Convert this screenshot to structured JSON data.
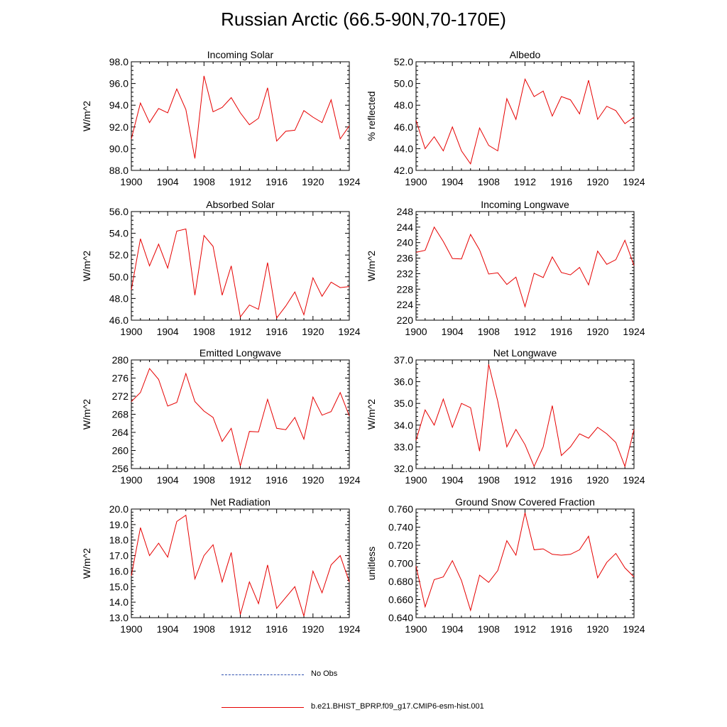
{
  "title": "Russian Arctic (66.5-90N,70-170E)",
  "colors": {
    "model": "#e60000",
    "obs": "#2f4fb0",
    "axis": "#000000"
  },
  "legend": {
    "obs_label": "No Obs",
    "model_label": "b.e21.BHIST_BPRP.f09_g17.CMIP6-esm-hist.001"
  },
  "chart_data": [
    {
      "type": "line",
      "title": "Incoming Solar",
      "ylabel": "W/m^2",
      "xlim": [
        1900,
        1924
      ],
      "ylim": [
        88,
        98
      ],
      "yticks": [
        "88.0",
        "90.0",
        "92.0",
        "94.0",
        "96.0",
        "98.0"
      ],
      "xticks": [
        "1900",
        "1904",
        "1908",
        "1912",
        "1916",
        "1920",
        "1924"
      ],
      "x": [
        1900,
        1901,
        1902,
        1903,
        1904,
        1905,
        1906,
        1907,
        1908,
        1909,
        1910,
        1911,
        1912,
        1913,
        1914,
        1915,
        1916,
        1917,
        1918,
        1919,
        1920,
        1921,
        1922,
        1923,
        1924
      ],
      "values": [
        90.9,
        94.2,
        92.4,
        93.7,
        93.3,
        95.5,
        93.6,
        89.1,
        96.7,
        93.4,
        93.8,
        94.7,
        93.3,
        92.2,
        92.8,
        95.6,
        90.7,
        91.6,
        91.7,
        93.5,
        92.9,
        92.4,
        94.5,
        90.9,
        92.1
      ]
    },
    {
      "type": "line",
      "title": "Albedo",
      "ylabel": "% reflected",
      "xlim": [
        1900,
        1924
      ],
      "ylim": [
        42,
        52
      ],
      "yticks": [
        "42.0",
        "44.0",
        "46.0",
        "48.0",
        "50.0",
        "52.0"
      ],
      "xticks": [
        "1900",
        "1904",
        "1908",
        "1912",
        "1916",
        "1920",
        "1924"
      ],
      "x": [
        1900,
        1901,
        1902,
        1903,
        1904,
        1905,
        1906,
        1907,
        1908,
        1909,
        1910,
        1911,
        1912,
        1913,
        1914,
        1915,
        1916,
        1917,
        1918,
        1919,
        1920,
        1921,
        1922,
        1923,
        1924
      ],
      "values": [
        46.6,
        44.0,
        45.1,
        43.8,
        46.0,
        43.8,
        42.6,
        45.9,
        44.3,
        43.8,
        48.6,
        46.7,
        50.4,
        48.8,
        49.3,
        47.0,
        48.8,
        48.5,
        47.2,
        50.3,
        46.7,
        47.9,
        47.5,
        46.3,
        46.9
      ]
    },
    {
      "type": "line",
      "title": "Absorbed Solar",
      "ylabel": "W/m^2",
      "xlim": [
        1900,
        1924
      ],
      "ylim": [
        46,
        56
      ],
      "yticks": [
        "46.0",
        "48.0",
        "50.0",
        "52.0",
        "54.0",
        "56.0"
      ],
      "xticks": [
        "1900",
        "1904",
        "1908",
        "1912",
        "1916",
        "1920",
        "1924"
      ],
      "x": [
        1900,
        1901,
        1902,
        1903,
        1904,
        1905,
        1906,
        1907,
        1908,
        1909,
        1910,
        1911,
        1912,
        1913,
        1914,
        1915,
        1916,
        1917,
        1918,
        1919,
        1920,
        1921,
        1922,
        1923,
        1924
      ],
      "values": [
        48.8,
        53.5,
        51.0,
        53.0,
        50.8,
        54.2,
        54.4,
        48.3,
        53.8,
        52.8,
        48.3,
        51.0,
        46.3,
        47.4,
        47.0,
        51.3,
        46.2,
        47.3,
        48.6,
        46.5,
        49.9,
        48.2,
        49.5,
        49.0,
        49.1
      ]
    },
    {
      "type": "line",
      "title": "Incoming Longwave",
      "ylabel": "W/m^2",
      "xlim": [
        1900,
        1924
      ],
      "ylim": [
        220,
        248
      ],
      "yticks": [
        "220",
        "224",
        "228",
        "232",
        "236",
        "240",
        "244",
        "248"
      ],
      "xticks": [
        "1900",
        "1904",
        "1908",
        "1912",
        "1916",
        "1920",
        "1924"
      ],
      "x": [
        1900,
        1901,
        1902,
        1903,
        1904,
        1905,
        1906,
        1907,
        1908,
        1909,
        1910,
        1911,
        1912,
        1913,
        1914,
        1915,
        1916,
        1917,
        1918,
        1919,
        1920,
        1921,
        1922,
        1923,
        1924
      ],
      "values": [
        237.5,
        238.0,
        244.0,
        240.3,
        235.9,
        235.8,
        242.1,
        238.1,
        231.9,
        232.2,
        229.2,
        231.1,
        223.5,
        232.1,
        231.0,
        236.3,
        232.3,
        231.7,
        233.6,
        229.1,
        237.8,
        234.4,
        235.6,
        240.6,
        234.1
      ]
    },
    {
      "type": "line",
      "title": "Emitted Longwave",
      "ylabel": "W/m^2",
      "xlim": [
        1900,
        1924
      ],
      "ylim": [
        256,
        280
      ],
      "yticks": [
        "256",
        "260",
        "264",
        "268",
        "272",
        "276",
        "280"
      ],
      "xticks": [
        "1900",
        "1904",
        "1908",
        "1912",
        "1916",
        "1920",
        "1924"
      ],
      "x": [
        1900,
        1901,
        1902,
        1903,
        1904,
        1905,
        1906,
        1907,
        1908,
        1909,
        1910,
        1911,
        1912,
        1913,
        1914,
        1915,
        1916,
        1917,
        1918,
        1919,
        1920,
        1921,
        1922,
        1923,
        1924
      ],
      "values": [
        270.8,
        272.8,
        278.1,
        275.7,
        269.8,
        270.6,
        277.0,
        270.8,
        268.7,
        267.3,
        262.0,
        264.9,
        256.6,
        264.2,
        264.1,
        271.3,
        264.9,
        264.6,
        267.3,
        262.5,
        271.8,
        267.8,
        268.6,
        272.8,
        267.6
      ]
    },
    {
      "type": "line",
      "title": "Net Longwave",
      "ylabel": "W/m^2",
      "xlim": [
        1900,
        1924
      ],
      "ylim": [
        32,
        37
      ],
      "yticks": [
        "32.0",
        "33.0",
        "34.0",
        "35.0",
        "36.0",
        "37.0"
      ],
      "xticks": [
        "1900",
        "1904",
        "1908",
        "1912",
        "1916",
        "1920",
        "1924"
      ],
      "x": [
        1900,
        1901,
        1902,
        1903,
        1904,
        1905,
        1906,
        1907,
        1908,
        1909,
        1910,
        1911,
        1912,
        1913,
        1914,
        1915,
        1916,
        1917,
        1918,
        1919,
        1920,
        1921,
        1922,
        1923,
        1924
      ],
      "values": [
        33.3,
        34.7,
        34.0,
        35.2,
        33.9,
        35.0,
        34.8,
        32.8,
        36.8,
        35.1,
        33.0,
        33.8,
        33.1,
        32.1,
        33.0,
        34.9,
        32.6,
        33.0,
        33.6,
        33.4,
        33.9,
        33.6,
        33.2,
        32.1,
        33.8
      ]
    },
    {
      "type": "line",
      "title": "Net Radiation",
      "ylabel": "W/m^2",
      "xlim": [
        1900,
        1924
      ],
      "ylim": [
        13,
        20
      ],
      "yticks": [
        "13.0",
        "14.0",
        "15.0",
        "16.0",
        "17.0",
        "18.0",
        "19.0",
        "20.0"
      ],
      "xticks": [
        "1900",
        "1904",
        "1908",
        "1912",
        "1916",
        "1920",
        "1924"
      ],
      "x": [
        1900,
        1901,
        1902,
        1903,
        1904,
        1905,
        1906,
        1907,
        1908,
        1909,
        1910,
        1911,
        1912,
        1913,
        1914,
        1915,
        1916,
        1917,
        1918,
        1919,
        1920,
        1921,
        1922,
        1923,
        1924
      ],
      "values": [
        15.7,
        18.8,
        17.0,
        17.8,
        16.9,
        19.2,
        19.6,
        15.5,
        17.0,
        17.7,
        15.3,
        17.2,
        13.2,
        15.3,
        13.9,
        16.4,
        13.6,
        14.3,
        15.0,
        13.1,
        16.0,
        14.6,
        16.4,
        17.0,
        15.3
      ]
    },
    {
      "type": "line",
      "title": "Ground Snow Covered Fraction",
      "ylabel": "unitless",
      "xlim": [
        1900,
        1924
      ],
      "ylim": [
        0.64,
        0.76
      ],
      "yticks": [
        "0.640",
        "0.660",
        "0.680",
        "0.700",
        "0.720",
        "0.740",
        "0.760"
      ],
      "xticks": [
        "1900",
        "1904",
        "1908",
        "1912",
        "1916",
        "1920",
        "1924"
      ],
      "x": [
        1900,
        1901,
        1902,
        1903,
        1904,
        1905,
        1906,
        1907,
        1908,
        1909,
        1910,
        1911,
        1912,
        1913,
        1914,
        1915,
        1916,
        1917,
        1918,
        1919,
        1920,
        1921,
        1922,
        1923,
        1924
      ],
      "values": [
        0.697,
        0.652,
        0.682,
        0.685,
        0.703,
        0.681,
        0.648,
        0.687,
        0.679,
        0.692,
        0.725,
        0.709,
        0.756,
        0.715,
        0.716,
        0.71,
        0.709,
        0.71,
        0.715,
        0.73,
        0.684,
        0.701,
        0.711,
        0.695,
        0.685
      ]
    }
  ]
}
